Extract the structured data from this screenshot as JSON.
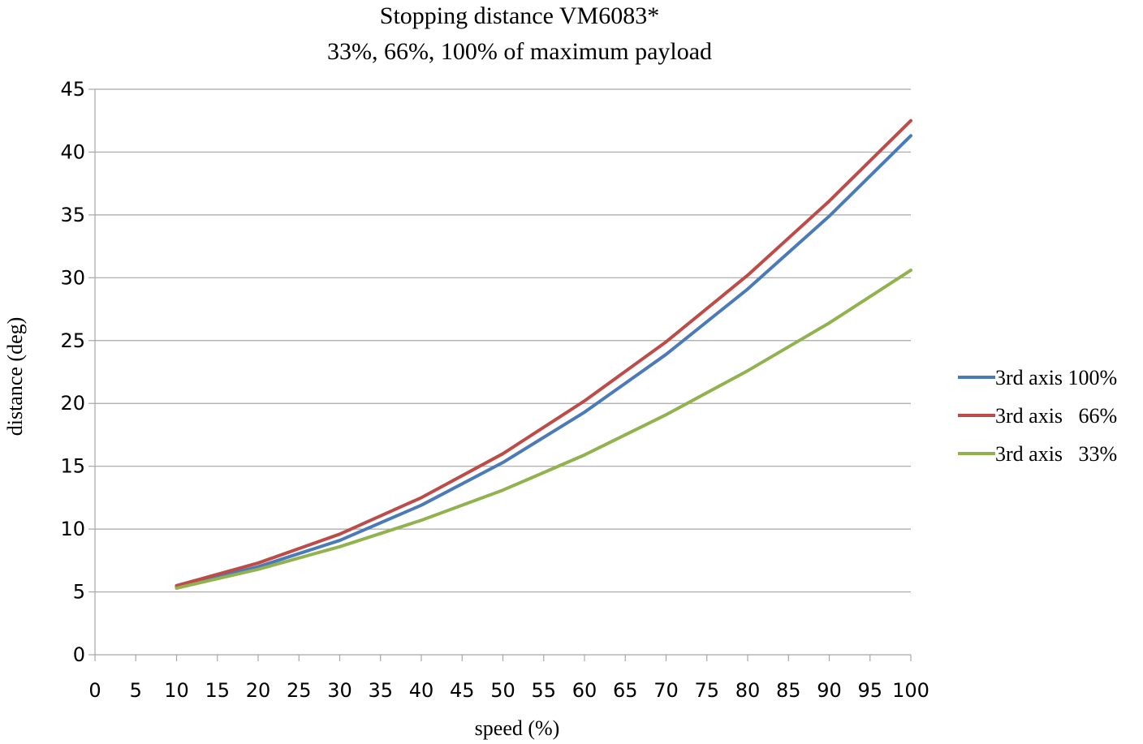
{
  "chart_data": {
    "type": "line",
    "title": "Stopping distance VM6083*",
    "subtitle": "33%, 66%, 100% of maximum payload",
    "xlabel": "speed (%)",
    "ylabel": "distance (deg)",
    "xlim": [
      0,
      100
    ],
    "ylim": [
      0,
      45
    ],
    "x_ticks": [
      "0",
      "5",
      "10",
      "15",
      "20",
      "25",
      "30",
      "35",
      "40",
      "45",
      "50",
      "55",
      "60",
      "65",
      "70",
      "75",
      "80",
      "85",
      "90",
      "95",
      "100"
    ],
    "y_ticks": [
      "0",
      "5",
      "10",
      "15",
      "20",
      "25",
      "30",
      "35",
      "40",
      "45"
    ],
    "grid": "horizontal",
    "legend_position": "right",
    "x": [
      10,
      20,
      30,
      40,
      50,
      60,
      70,
      80,
      90,
      100
    ],
    "series": [
      {
        "name": "3rd axis 100%",
        "color": "#4a7ab8",
        "values": [
          5.4,
          7.0,
          9.1,
          11.9,
          15.3,
          19.3,
          23.9,
          29.1,
          34.9,
          41.3
        ]
      },
      {
        "name": "3rd axis   66%",
        "color": "#bd4b48",
        "values": [
          5.5,
          7.3,
          9.6,
          12.5,
          16.0,
          20.2,
          24.9,
          30.2,
          36.1,
          42.5
        ]
      },
      {
        "name": "3rd axis   33%",
        "color": "#92b24e",
        "values": [
          5.3,
          6.8,
          8.6,
          10.7,
          13.1,
          15.9,
          19.1,
          22.6,
          26.4,
          30.6
        ]
      }
    ]
  }
}
